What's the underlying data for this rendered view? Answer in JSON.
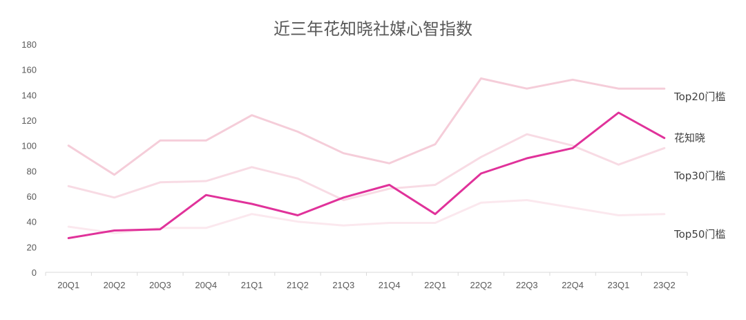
{
  "chart_data": {
    "type": "line",
    "title": "近三年花知晓社媒心智指数",
    "xlabel": "",
    "ylabel": "",
    "ylim": [
      0,
      180
    ],
    "yticks": [
      0,
      20,
      40,
      60,
      80,
      100,
      120,
      140,
      160,
      180
    ],
    "grid": false,
    "legend": "none",
    "categories": [
      "20Q1",
      "20Q2",
      "20Q3",
      "20Q4",
      "21Q1",
      "21Q2",
      "21Q3",
      "21Q4",
      "22Q1",
      "22Q2",
      "22Q3",
      "22Q4",
      "23Q1",
      "23Q2"
    ],
    "series": [
      {
        "name": "Top20门槛",
        "color": "#f5cdd9",
        "values": [
          100,
          77,
          104,
          104,
          124,
          111,
          94,
          86,
          101,
          153,
          145,
          152,
          145,
          145
        ]
      },
      {
        "name": "Top30门槛",
        "color": "#f8dbe4",
        "values": [
          68,
          59,
          71,
          72,
          83,
          74,
          57,
          66,
          69,
          91,
          109,
          100,
          85,
          98
        ]
      },
      {
        "name": "Top50门槛",
        "color": "#fbe8ee",
        "values": [
          36,
          31,
          35,
          35,
          46,
          40,
          37,
          39,
          39,
          55,
          57,
          51,
          45,
          46
        ]
      },
      {
        "name": "花知晓",
        "color": "#e0329a",
        "values": [
          27,
          33,
          34,
          61,
          54,
          45,
          59,
          69,
          46,
          78,
          90,
          98,
          126,
          106
        ]
      }
    ]
  }
}
